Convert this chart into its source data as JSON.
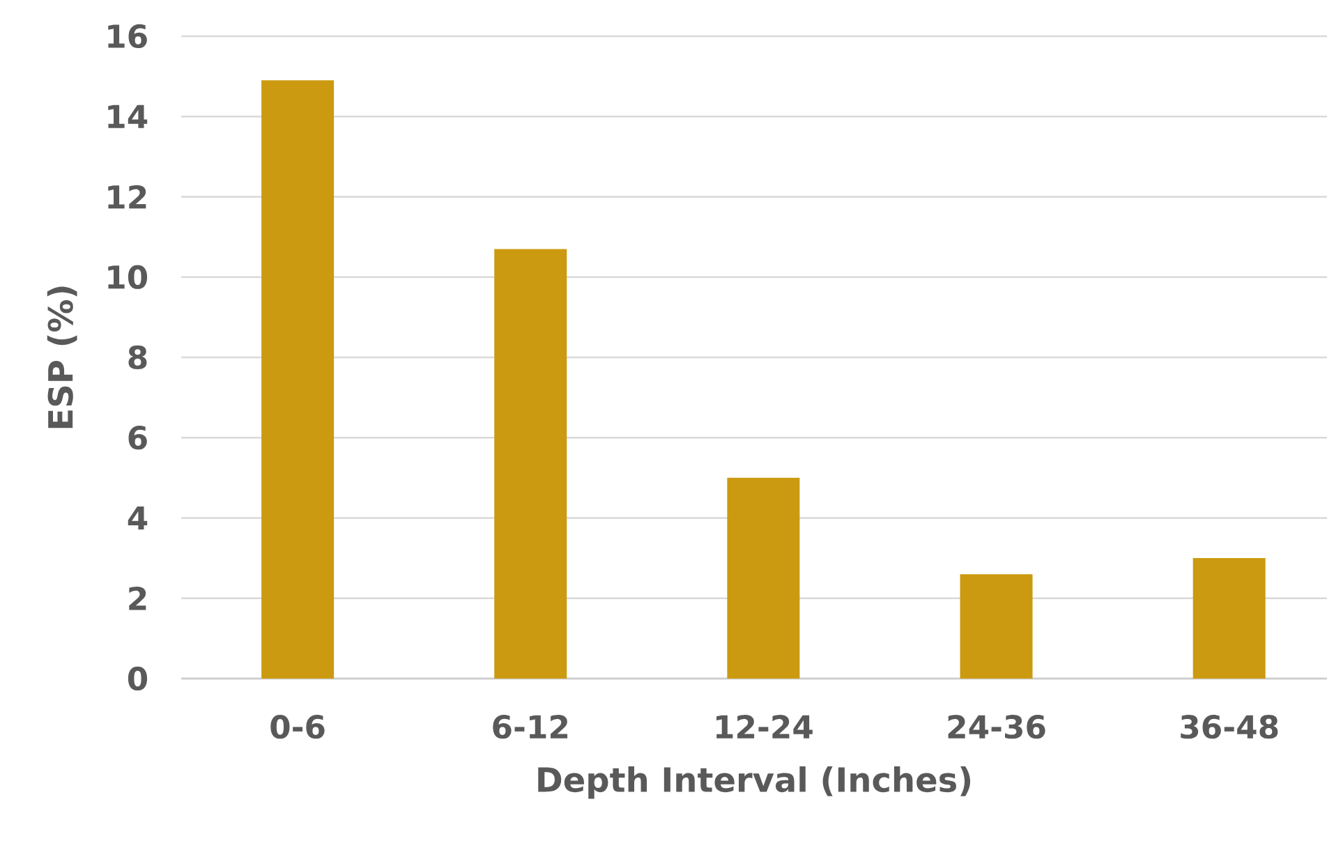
{
  "chart_data": {
    "type": "bar",
    "xlabel": "Depth Interval (Inches)",
    "ylabel": "ESP (%)",
    "categories": [
      "0-6",
      "6-12",
      "12-24",
      "24-36",
      "36-48"
    ],
    "values": [
      14.9,
      10.7,
      5.0,
      2.6,
      3.0
    ],
    "color": "#cc9a10",
    "ylim": [
      0,
      16
    ],
    "yticks": [
      0,
      2,
      4,
      6,
      8,
      10,
      12,
      14,
      16
    ],
    "grid": "y"
  }
}
